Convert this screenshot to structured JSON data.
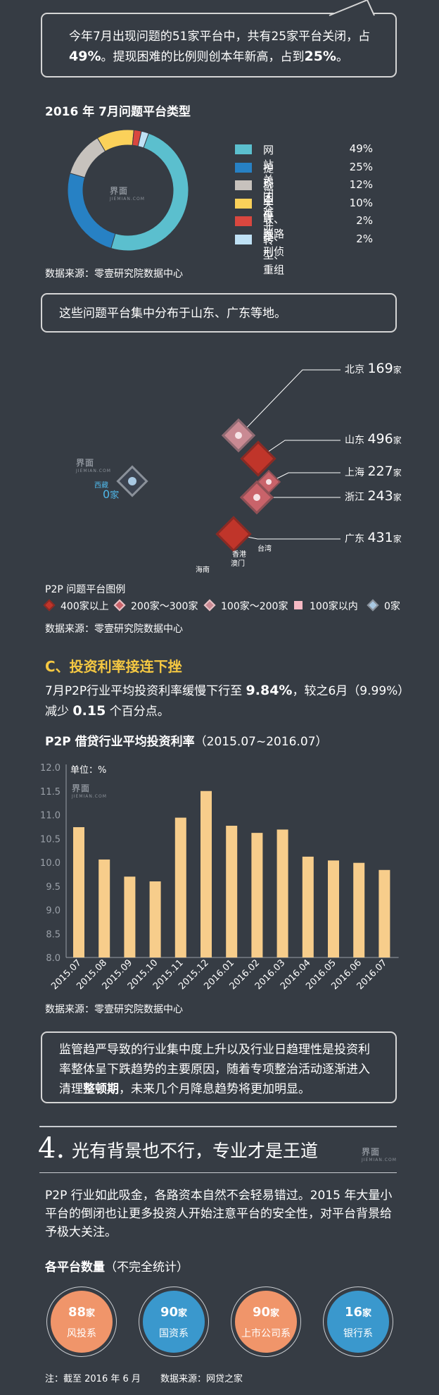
{
  "callout1": {
    "line1": "今年7月出现问题的51家平台中，共有25家平台关闭，占",
    "pct1": "49%",
    "mid": "。提现困难的比例则创本年新高，占到",
    "pct2": "25%",
    "end": "。"
  },
  "donut_chart": {
    "title": "2016 年 7月问题平台类型",
    "source": "数据来源：零壹研究院数据中心",
    "watermark": "界面",
    "watermark_sub": "JIEMIAN.COM"
  },
  "chart_data": [
    {
      "type": "pie",
      "title": "2016 年 7月问题平台类型",
      "categories": [
        "网站关闭",
        "提现困难",
        "歇业停业",
        "失联、跑路",
        "立案、刑侦",
        "转型、重组"
      ],
      "values": [
        49,
        25,
        12,
        10,
        2,
        2
      ],
      "labels": [
        "49%",
        "25%",
        "12%",
        "10%",
        "2%",
        "2%"
      ],
      "colors": [
        "#5bbfce",
        "#2781c4",
        "#c7c2bd",
        "#fbd15a",
        "#d9473f",
        "#bfe1f5"
      ],
      "legend": "right"
    },
    {
      "type": "bar",
      "title": "P2P 借贷行业平均投资利率",
      "subtitle": "（2015.07~2016.07）",
      "unit_label": "单位：%",
      "categories": [
        "2015.07",
        "2015.08",
        "2015.09",
        "2015.10",
        "2015.11",
        "2015.12",
        "2016.01",
        "2016.02",
        "2016.03",
        "2016.04",
        "2016.05",
        "2016.06",
        "2016.07"
      ],
      "values": [
        10.74,
        10.06,
        9.7,
        9.6,
        10.94,
        11.5,
        10.77,
        10.62,
        10.69,
        10.12,
        10.04,
        9.99,
        9.84
      ],
      "yticks": [
        "12.0",
        "11.5",
        "11.0",
        "10.5",
        "10.0",
        "9.5",
        "9.0",
        "8.5",
        "8.0"
      ],
      "ylim": [
        8.0,
        12.0
      ],
      "color": "#f7cd8b",
      "grid": false
    }
  ],
  "callout2": {
    "text": "这些问题平台集中分布于山东、广东等地。"
  },
  "map": {
    "cities": [
      {
        "name": "北京",
        "value": "169",
        "unit": "家"
      },
      {
        "name": "山东",
        "value": "496",
        "unit": "家"
      },
      {
        "name": "上海",
        "value": "227",
        "unit": "家"
      },
      {
        "name": "浙江",
        "value": "243",
        "unit": "家"
      },
      {
        "name": "广东",
        "value": "431",
        "unit": "家"
      }
    ],
    "xizang": {
      "name": "西藏",
      "value": "0",
      "unit": "家"
    },
    "small_labels": {
      "taiwan": "台湾",
      "hongkong": "香港",
      "macau": "澳门",
      "hainan": "海南"
    },
    "legend_title": "P2P 问题平台图例",
    "legend": [
      "400家以上",
      "200家～300家",
      "100家～200家",
      "100家以内",
      "0家"
    ],
    "legend_colors": [
      "#c0352a",
      "#c9636a",
      "#c98a93",
      "#f5b9c3",
      "#a9c9e3"
    ],
    "source": "数据来源：零壹研究院数据中心"
  },
  "section_c": {
    "title": "C、投资利率接连下挫",
    "title_color": "#f5c842",
    "p1a": "7月P2P行业平均投资利率缓慢下行至 ",
    "p1b": "9.84%",
    "p1c": "，较之6月（9.99%）",
    "p2a": "减少 ",
    "p2b": "0.15",
    "p2c": " 个百分点。"
  },
  "bar_chart": {
    "title": "P2P 借贷行业平均投资利率",
    "subtitle": "（2015.07~2016.07）",
    "unit": "单位：%",
    "source": "数据来源：零壹研究院数据中心"
  },
  "callout3": {
    "l1": "监管趋严导致的行业集中度上升以及行业日趋理性是投资利",
    "l2": "率整体呈下跌趋势的主要原因，随着专项整治活动逐渐进入",
    "l3a": "清理",
    "l3b": "整顿期",
    "l3c": "，未来几个月降息趋势将更加明显。"
  },
  "section4": {
    "num": "4.",
    "title": "光有背景也不行，专业才是王道",
    "p1": "P2P 行业如此吸金，各路资本自然不会轻易错过。2015 年大量小",
    "p2": "平台的倒闭也让更多投资人开始注意平台的安全性，对平台背景给",
    "p3": "予极大关注。",
    "counts_title": "各平台数量",
    "counts_sub": "（不完全统计）",
    "circles": [
      {
        "num": "88",
        "unit": "家",
        "label": "风投系",
        "color": "#f0956a"
      },
      {
        "num": "90",
        "unit": "家",
        "label": "国资系",
        "color": "#3a98cd"
      },
      {
        "num": "90",
        "unit": "家",
        "label": "上市公司系",
        "color": "#f0956a"
      },
      {
        "num": "16",
        "unit": "家",
        "label": "银行系",
        "color": "#3a98cd"
      }
    ],
    "note": "注：截至 2016 年 6 月",
    "source": "数据来源：网贷之家"
  }
}
